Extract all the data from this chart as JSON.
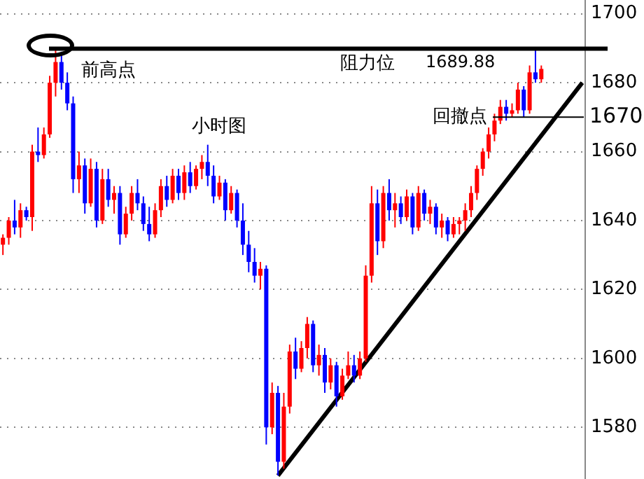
{
  "chart_data": {
    "type": "candlestick",
    "categories": [
      null,
      null,
      null,
      null,
      null,
      null,
      null,
      null,
      null,
      null,
      null,
      null,
      null,
      null,
      null,
      null,
      null,
      null,
      null,
      null,
      null,
      null,
      null,
      null,
      null,
      null,
      null,
      null,
      null,
      null,
      null,
      null,
      null,
      null,
      null,
      null,
      null,
      null,
      null,
      null,
      null,
      null,
      null,
      null,
      null,
      null,
      null,
      null,
      null,
      null,
      null,
      null,
      null,
      null,
      null,
      null,
      null,
      null,
      null,
      null,
      null,
      null,
      null,
      null,
      null,
      null,
      null,
      null,
      null,
      null,
      null,
      null,
      null,
      null,
      null,
      null,
      null,
      null,
      null,
      null,
      null,
      null,
      null,
      null,
      null,
      null,
      null,
      null,
      null,
      null,
      null,
      null,
      null,
      null,
      null,
      null,
      null,
      null,
      null,
      null
    ],
    "ohlc": [
      [
        1633,
        1636,
        1630,
        1635
      ],
      [
        1635,
        1641,
        1633,
        1640
      ],
      [
        1640,
        1646,
        1636,
        1638
      ],
      [
        1638,
        1645,
        1635,
        1643
      ],
      [
        1643,
        1644,
        1640,
        1641
      ],
      [
        1641,
        1662,
        1637,
        1660
      ],
      [
        1660,
        1667,
        1657,
        1659
      ],
      [
        1659,
        1667,
        1658,
        1665
      ],
      [
        1665,
        1682,
        1664,
        1680
      ],
      [
        1680,
        1690,
        1676,
        1686
      ],
      [
        1686,
        1689,
        1678,
        1680
      ],
      [
        1680,
        1683,
        1672,
        1674
      ],
      [
        1674,
        1676,
        1648,
        1652
      ],
      [
        1652,
        1660,
        1648,
        1656
      ],
      [
        1656,
        1658,
        1642,
        1645
      ],
      [
        1645,
        1658,
        1644,
        1655
      ],
      [
        1655,
        1657,
        1638,
        1640
      ],
      [
        1640,
        1655,
        1639,
        1652
      ],
      [
        1652,
        1655,
        1644,
        1646
      ],
      [
        1646,
        1650,
        1642,
        1648
      ],
      [
        1648,
        1650,
        1633,
        1636
      ],
      [
        1636,
        1644,
        1635,
        1642
      ],
      [
        1642,
        1650,
        1640,
        1648
      ],
      [
        1648,
        1652,
        1643,
        1645
      ],
      [
        1645,
        1647,
        1637,
        1639
      ],
      [
        1639,
        1644,
        1634,
        1636
      ],
      [
        1636,
        1645,
        1635,
        1643
      ],
      [
        1643,
        1652,
        1641,
        1650
      ],
      [
        1650,
        1653,
        1644,
        1646
      ],
      [
        1646,
        1655,
        1645,
        1653
      ],
      [
        1653,
        1655,
        1646,
        1648
      ],
      [
        1648,
        1656,
        1646,
        1654
      ],
      [
        1654,
        1657,
        1648,
        1650
      ],
      [
        1650,
        1656,
        1649,
        1655
      ],
      [
        1655,
        1659,
        1652,
        1657
      ],
      [
        1657,
        1662,
        1650,
        1653
      ],
      [
        1653,
        1656,
        1645,
        1647
      ],
      [
        1647,
        1653,
        1646,
        1651
      ],
      [
        1651,
        1652,
        1640,
        1643
      ],
      [
        1643,
        1650,
        1642,
        1648
      ],
      [
        1648,
        1649,
        1638,
        1640
      ],
      [
        1640,
        1645,
        1630,
        1633
      ],
      [
        1633,
        1637,
        1625,
        1628
      ],
      [
        1628,
        1632,
        1622,
        1624
      ],
      [
        1624,
        1628,
        1620,
        1626
      ],
      [
        1626,
        1627,
        1575,
        1580
      ],
      [
        1580,
        1593,
        1578,
        1590
      ],
      [
        1590,
        1592,
        1566,
        1570
      ],
      [
        1570,
        1590,
        1568,
        1586
      ],
      [
        1586,
        1604,
        1584,
        1602
      ],
      [
        1602,
        1606,
        1594,
        1597
      ],
      [
        1597,
        1605,
        1596,
        1603
      ],
      [
        1603,
        1612,
        1600,
        1610
      ],
      [
        1610,
        1611,
        1596,
        1598
      ],
      [
        1598,
        1604,
        1595,
        1601
      ],
      [
        1601,
        1603,
        1590,
        1593
      ],
      [
        1593,
        1600,
        1591,
        1598
      ],
      [
        1598,
        1599,
        1586,
        1589
      ],
      [
        1589,
        1597,
        1588,
        1595
      ],
      [
        1595,
        1602,
        1594,
        1598
      ],
      [
        1598,
        1601,
        1593,
        1595
      ],
      [
        1595,
        1602,
        1594,
        1600
      ],
      [
        1600,
        1627,
        1599,
        1624
      ],
      [
        1624,
        1650,
        1622,
        1645
      ],
      [
        1645,
        1649,
        1630,
        1634
      ],
      [
        1634,
        1650,
        1632,
        1648
      ],
      [
        1648,
        1652,
        1640,
        1643
      ],
      [
        1643,
        1648,
        1638,
        1645
      ],
      [
        1645,
        1647,
        1639,
        1641
      ],
      [
        1641,
        1649,
        1640,
        1647
      ],
      [
        1647,
        1648,
        1636,
        1638
      ],
      [
        1638,
        1650,
        1637,
        1648
      ],
      [
        1648,
        1649,
        1640,
        1642
      ],
      [
        1642,
        1646,
        1639,
        1644
      ],
      [
        1644,
        1645,
        1636,
        1638
      ],
      [
        1638,
        1642,
        1635,
        1640
      ],
      [
        1640,
        1641,
        1634,
        1636
      ],
      [
        1636,
        1641,
        1635,
        1639
      ],
      [
        1639,
        1641,
        1636,
        1640
      ],
      [
        1640,
        1645,
        1637,
        1643
      ],
      [
        1643,
        1650,
        1641,
        1648
      ],
      [
        1648,
        1656,
        1646,
        1655
      ],
      [
        1655,
        1661,
        1653,
        1660
      ],
      [
        1660,
        1667,
        1658,
        1665
      ],
      [
        1665,
        1671,
        1663,
        1669
      ],
      [
        1669,
        1675,
        1668,
        1673
      ],
      [
        1673,
        1675,
        1669,
        1671
      ],
      [
        1671,
        1674,
        1670,
        1672
      ],
      [
        1672,
        1680,
        1671,
        1678
      ],
      [
        1678,
        1679,
        1670,
        1672
      ],
      [
        1672,
        1685,
        1671,
        1683
      ],
      [
        1683,
        1689.88,
        1680,
        1681
      ],
      [
        1681,
        1685,
        1680,
        1684
      ],
      null,
      null,
      null,
      null,
      null,
      null,
      null
    ],
    "colors": [
      "#ff0000",
      "#ff0000",
      "#0000ff",
      "#ff0000",
      "#0000ff",
      "#ff0000",
      "#0000ff",
      "#ff0000",
      "#ff0000",
      "#ff0000",
      "#0000ff",
      "#0000ff",
      "#0000ff",
      "#ff0000",
      "#0000ff",
      "#ff0000",
      "#0000ff",
      "#ff0000",
      "#0000ff",
      "#ff0000",
      "#0000ff",
      "#ff0000",
      "#ff0000",
      "#0000ff",
      "#0000ff",
      "#0000ff",
      "#ff0000",
      "#ff0000",
      "#0000ff",
      "#ff0000",
      "#0000ff",
      "#ff0000",
      "#0000ff",
      "#ff0000",
      "#ff0000",
      "#0000ff",
      "#0000ff",
      "#ff0000",
      "#0000ff",
      "#ff0000",
      "#0000ff",
      "#0000ff",
      "#0000ff",
      "#0000ff",
      "#ff0000",
      "#0000ff",
      "#ff0000",
      "#0000ff",
      "#ff0000",
      "#ff0000",
      "#0000ff",
      "#ff0000",
      "#ff0000",
      "#0000ff",
      "#ff0000",
      "#0000ff",
      "#ff0000",
      "#0000ff",
      "#ff0000",
      "#ff0000",
      "#0000ff",
      "#ff0000",
      "#ff0000",
      "#ff0000",
      "#0000ff",
      "#ff0000",
      "#0000ff",
      "#ff0000",
      "#0000ff",
      "#ff0000",
      "#0000ff",
      "#ff0000",
      "#0000ff",
      "#ff0000",
      "#0000ff",
      "#ff0000",
      "#0000ff",
      "#ff0000",
      "#ff0000",
      "#ff0000",
      "#ff0000",
      "#ff0000",
      "#ff0000",
      "#ff0000",
      "#ff0000",
      "#ff0000",
      "#0000ff",
      "#ff0000",
      "#ff0000",
      "#0000ff",
      "#ff0000",
      "#0000ff",
      "#ff0000",
      null,
      null,
      null,
      null,
      null,
      null,
      null
    ],
    "series": [
      {
        "type": "line",
        "color": "#000000",
        "values": [
          null,
          null,
          null,
          null,
          null,
          null,
          null,
          null,
          null,
          null,
          null,
          null,
          null,
          null,
          null,
          null,
          null,
          null,
          null,
          null,
          null,
          null,
          null,
          null,
          null,
          null,
          null,
          null,
          null,
          null,
          null,
          null,
          null,
          null,
          null,
          null,
          null,
          null,
          null,
          null,
          null,
          null,
          null,
          null,
          null,
          null,
          null,
          1566,
          null,
          null,
          null,
          null,
          null,
          null,
          null,
          null,
          null,
          null,
          null,
          null,
          null,
          null,
          null,
          null,
          null,
          null,
          null,
          null,
          null,
          null,
          null,
          null,
          null,
          null,
          null,
          null,
          null,
          null,
          null,
          null,
          null,
          null,
          null,
          null,
          null,
          null,
          null,
          null,
          null,
          null,
          null,
          null,
          null,
          null,
          null,
          null,
          null,
          null,
          null,
          1680
        ]
      }
    ],
    "ylim": [
      1565,
      1704
    ],
    "yticks": [
      1580,
      1600,
      1620,
      1640,
      1660,
      1680,
      1700
    ],
    "grid": "y",
    "legend": false,
    "ref_lines": [
      {
        "axis": "y",
        "value": 1689.88,
        "label": "1689.88",
        "color": "#000000"
      },
      {
        "axis": "y",
        "value": 1670,
        "label": "1670",
        "color": "#000000"
      }
    ],
    "annotations": [
      "前高点",
      "小时图",
      "阻力位",
      "回撤点"
    ]
  }
}
